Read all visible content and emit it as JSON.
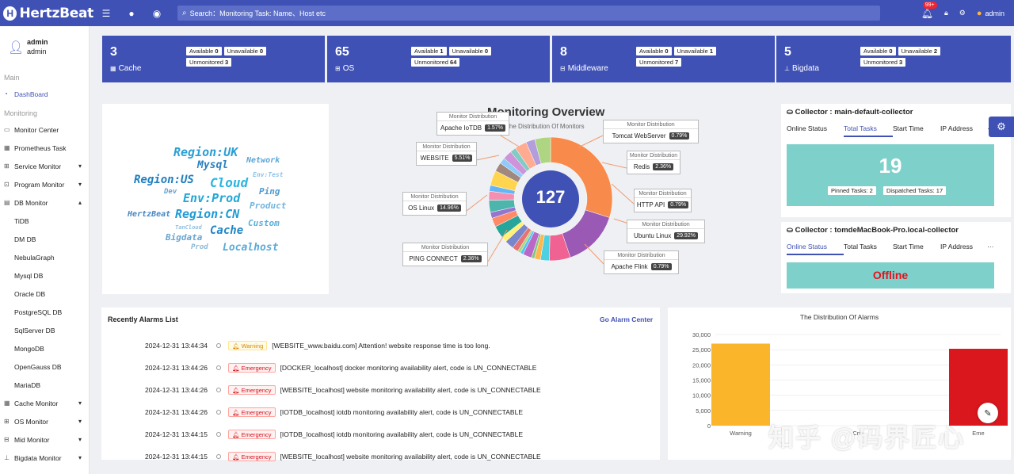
{
  "app": {
    "name": "HertzBeat"
  },
  "topbar": {
    "search_placeholder": "Search：Monitoring Task: Name、Host etc",
    "notification_count": "99+",
    "user": "admin"
  },
  "sidebar": {
    "user_name": "admin",
    "user_role": "admin",
    "group_main": "Main",
    "group_monitoring": "Monitoring",
    "items": [
      {
        "label": "DashBoard",
        "icon": "dashboard-icon",
        "active": true
      },
      {
        "label": "Monitor Center",
        "icon": "monitor-icon"
      },
      {
        "label": "Prometheus Task",
        "icon": "prometheus-icon"
      },
      {
        "label": "Service Monitor",
        "icon": "service-icon",
        "arrow": "▾"
      },
      {
        "label": "Program Monitor",
        "icon": "program-icon",
        "arrow": "▾"
      },
      {
        "label": "DB Monitor",
        "icon": "db-icon",
        "arrow": "▴"
      },
      {
        "label": "TiDB",
        "sub": true
      },
      {
        "label": "DM DB",
        "sub": true
      },
      {
        "label": "NebulaGraph",
        "sub": true
      },
      {
        "label": "Mysql DB",
        "sub": true
      },
      {
        "label": "Oracle DB",
        "sub": true
      },
      {
        "label": "PostgreSQL DB",
        "sub": true
      },
      {
        "label": "SqlServer DB",
        "sub": true
      },
      {
        "label": "MongoDB",
        "sub": true
      },
      {
        "label": "OpenGauss DB",
        "sub": true
      },
      {
        "label": "MariaDB",
        "sub": true
      },
      {
        "label": "Cache Monitor",
        "icon": "cache-icon",
        "arrow": "▾"
      },
      {
        "label": "OS Monitor",
        "icon": "os-icon",
        "arrow": "▾"
      },
      {
        "label": "Mid Monitor",
        "icon": "middleware-icon",
        "arrow": "▾"
      },
      {
        "label": "Bigdata Monitor",
        "icon": "bigdata-icon",
        "arrow": "▾"
      }
    ]
  },
  "stats": [
    {
      "count": "3",
      "label": "Cache",
      "icon": "cache-icon",
      "available": "0",
      "unavailable": "0",
      "unmonitored": "3"
    },
    {
      "count": "65",
      "label": "OS",
      "icon": "os-icon",
      "available": "1",
      "unavailable": "0",
      "unmonitored": "64"
    },
    {
      "count": "8",
      "label": "Middleware",
      "icon": "middleware-icon",
      "available": "0",
      "unavailable": "1",
      "unmonitored": "7"
    },
    {
      "count": "5",
      "label": "Bigdata",
      "icon": "bigdata-icon",
      "available": "0",
      "unavailable": "2",
      "unmonitored": "3"
    }
  ],
  "stat_labels": {
    "available": "Available",
    "unavailable": "Unavailable",
    "unmonitored": "Unmonitored"
  },
  "wordcloud": [
    {
      "text": "Region:UK",
      "color": "#2a9fd6"
    },
    {
      "text": "Mysql",
      "color": "#2a7fc0"
    },
    {
      "text": "Network",
      "color": "#5aa6d6"
    },
    {
      "text": "Env:Test",
      "color": "#8ec3e6"
    },
    {
      "text": "Region:US",
      "color": "#1f7fbf"
    },
    {
      "text": "Cloud",
      "color": "#29b6e0"
    },
    {
      "text": "Dev",
      "color": "#6aa6d0"
    },
    {
      "text": "Env:Prod",
      "color": "#23a8d8"
    },
    {
      "text": "Ping",
      "color": "#4c9ad0"
    },
    {
      "text": "Product",
      "color": "#6fb5e0"
    },
    {
      "text": "HertzBeat",
      "color": "#4a88c0"
    },
    {
      "text": "Region:CN",
      "color": "#1f9bd6"
    },
    {
      "text": "TanCloud",
      "color": "#8fc0e0"
    },
    {
      "text": "Cache",
      "color": "#1f86c7"
    },
    {
      "text": "Custom",
      "color": "#5caedb"
    },
    {
      "text": "Bigdata",
      "color": "#6aa6d0"
    },
    {
      "text": "Prod",
      "color": "#8ab8d8"
    },
    {
      "text": "Localhost",
      "color": "#5aaad8"
    }
  ],
  "overview": {
    "title": "Monitoring Overview",
    "subtitle": "The Distribution Of Monitors",
    "total": "127",
    "callout_title": "Monitor Distribution",
    "callouts": [
      {
        "name": "Apache IoTDB",
        "pct": "1.57%"
      },
      {
        "name": "Tomcat WebServer",
        "pct": "0.79%"
      },
      {
        "name": "WEBSITE",
        "pct": "5.51%"
      },
      {
        "name": "Redis",
        "pct": "2.36%"
      },
      {
        "name": "HTTP API",
        "pct": "0.79%"
      },
      {
        "name": "OS Linux",
        "pct": "14.96%"
      },
      {
        "name": "Ubuntu Linux",
        "pct": "29.92%"
      },
      {
        "name": "PING CONNECT",
        "pct": "2.36%"
      },
      {
        "name": "Apache Flink",
        "pct": "0.79%"
      }
    ]
  },
  "collectors": [
    {
      "title": "Collector : main-default-collector",
      "tabs": [
        "Online Status",
        "Total Tasks",
        "Start Time",
        "IP Address",
        "···"
      ],
      "active_tab": 1,
      "value": "19",
      "pinned_label": "Pinned Tasks: 2",
      "dispatched_label": "Dispatched Tasks: 17"
    },
    {
      "title": "Collector : tomdeMacBook-Pro.local-collector",
      "tabs": [
        "Online Status",
        "Total Tasks",
        "Start Time",
        "IP Address",
        "···"
      ],
      "active_tab": 0,
      "value": "Offline"
    }
  ],
  "alarms": {
    "title": "Recently Alarms List",
    "link": "Go Alarm Center",
    "rows": [
      {
        "time": "2024-12-31 13:44:34",
        "level": "Warning",
        "type": "warning",
        "msg": "[WEBSITE_www.baidu.com] Attention! website response time is too long."
      },
      {
        "time": "2024-12-31 13:44:26",
        "level": "Emergency",
        "type": "emergency",
        "msg": "[DOCKER_localhost] docker monitoring availability alert, code is UN_CONNECTABLE"
      },
      {
        "time": "2024-12-31 13:44:26",
        "level": "Emergency",
        "type": "emergency",
        "msg": "[WEBSITE_localhost] website monitoring availability alert, code is UN_CONNECTABLE"
      },
      {
        "time": "2024-12-31 13:44:26",
        "level": "Emergency",
        "type": "emergency",
        "msg": "[IOTDB_localhost] iotdb monitoring availability alert, code is UN_CONNECTABLE"
      },
      {
        "time": "2024-12-31 13:44:15",
        "level": "Emergency",
        "type": "emergency",
        "msg": "[IOTDB_localhost] iotdb monitoring availability alert, code is UN_CONNECTABLE"
      },
      {
        "time": "2024-12-31 13:44:15",
        "level": "Emergency",
        "type": "emergency",
        "msg": "[WEBSITE_localhost] website monitoring availability alert, code is UN_CONNECTABLE"
      }
    ]
  },
  "chart_data": {
    "type": "bar",
    "title": "The Distribution Of Alarms",
    "categories": [
      "Warning",
      "Critical",
      "Emergency"
    ],
    "category_labels_shown": [
      "Warning",
      "Criti",
      "Eme"
    ],
    "values": [
      27000,
      0,
      25300
    ],
    "colors": [
      "#fbb52a",
      "#f5872a",
      "#d9171d"
    ],
    "ylim": [
      0,
      30000
    ],
    "yticks": [
      "0",
      "5,000",
      "10,000",
      "15,000",
      "20,000",
      "25,000",
      "30,000"
    ],
    "grid": true
  },
  "watermark": "知乎 @码界匠心"
}
